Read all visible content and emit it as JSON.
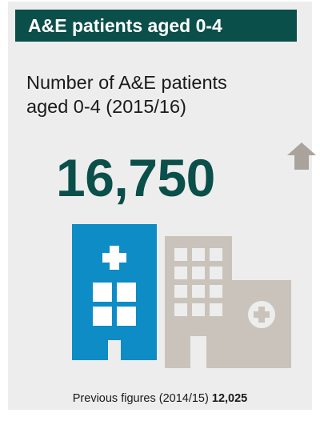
{
  "header": {
    "title": "A&E patients aged 0-4"
  },
  "subtitle": {
    "line1": "Number of A&E patients",
    "line2": "aged 0-4 (2015/16)"
  },
  "stat": {
    "value": "16,750",
    "trend": "up",
    "trend_icon": "up-arrow-icon"
  },
  "icons": {
    "current_building": "hospital-building-icon",
    "previous_building": "hospital-building-icon"
  },
  "footer": {
    "label": "Previous figures (2014/15)",
    "value": "12,025"
  },
  "colors": {
    "header_bg": "#0b4f4a",
    "accent_teal": "#0b4f4a",
    "building_blue": "#0e8cc5",
    "building_grey": "#c9c3bc",
    "arrow_grey": "#a9a39c",
    "card_bg": "#ededed"
  }
}
